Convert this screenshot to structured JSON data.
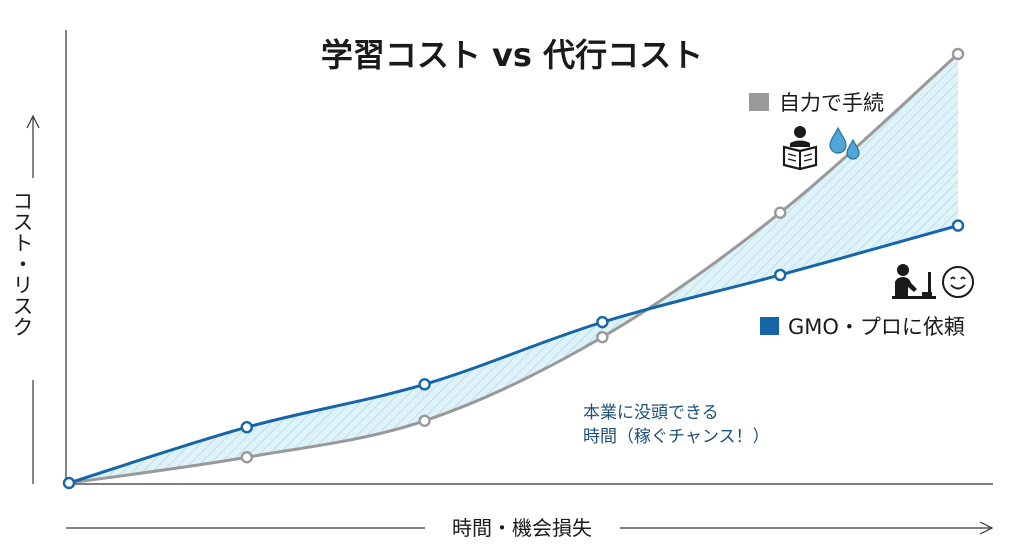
{
  "chart_data": {
    "type": "line",
    "title": "学習コスト vs 代行コスト",
    "xlabel": "時間・機会損失",
    "ylabel": "コスト・リスク",
    "x": [
      0,
      1,
      2,
      3,
      4,
      5
    ],
    "xlim": [
      0,
      5
    ],
    "ylim": [
      0,
      10
    ],
    "series": [
      {
        "name": "自力で手続",
        "color": "#999999",
        "values": [
          0,
          0.6,
          1.45,
          3.4,
          6.3,
          10
        ]
      },
      {
        "name": "GMO・プロに依頼",
        "color": "#1565a8",
        "values": [
          0,
          1.3,
          2.3,
          3.75,
          4.85,
          6.0
        ]
      }
    ],
    "annotation": {
      "line1": "本業に没頭できる",
      "line2": "時間（稼ぐチャンス！）"
    },
    "fill_color": "#d7eff7",
    "grid": false
  },
  "icons": {
    "self": [
      "person-reading-book-icon",
      "sweat-drops-icon"
    ],
    "pro": [
      "person-at-desk-icon",
      "smile-face-icon"
    ]
  }
}
